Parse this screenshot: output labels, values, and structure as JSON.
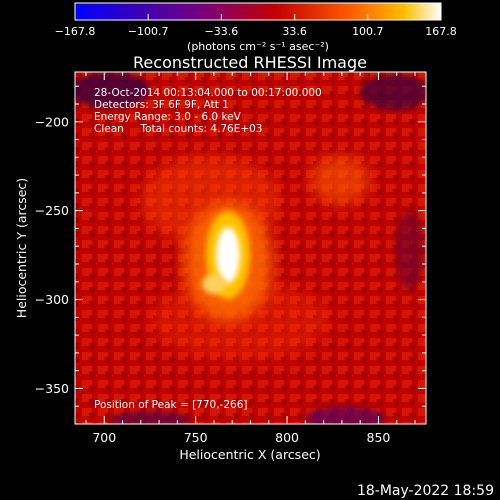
{
  "chart_data": {
    "type": "heatmap",
    "title": "Reconstructed RHESSI Image",
    "xlabel": "Heliocentric X (arcsec)",
    "ylabel": "Heliocentric Y (arcsec)",
    "xlim": [
      684,
      876
    ],
    "ylim": [
      -370,
      -172
    ],
    "x_ticks": [
      700,
      750,
      800,
      850
    ],
    "y_ticks": [
      -200,
      -250,
      -300,
      -350
    ],
    "colorbar": {
      "ticks": [
        "-167.8",
        "-100.7",
        "-33.6",
        "33.6",
        "100.7",
        "167.8"
      ],
      "range": [
        -167.8,
        167.8
      ],
      "unit_label": "(photons cm⁻² s⁻¹ asec⁻²)",
      "colormap": [
        "#0000ff",
        "#3a00b5",
        "#7a007a",
        "#c40000",
        "#ff5a00",
        "#ffbe00",
        "#ffffff"
      ]
    },
    "peak": [
      770,
      -266
    ],
    "info_lines": [
      "28-Oct-2014 00:13:04.000 to 00:17:00.000",
      "Detectors: 3F 6F 9F, Att 1",
      "Energy Range: 3.0 - 6.0 keV",
      "Clean     Total counts: 4.76E+03"
    ],
    "peak_text": "Position of Peak = [770,-266]"
  },
  "footer": {
    "timestamp": "18-May-2022 18:59"
  }
}
